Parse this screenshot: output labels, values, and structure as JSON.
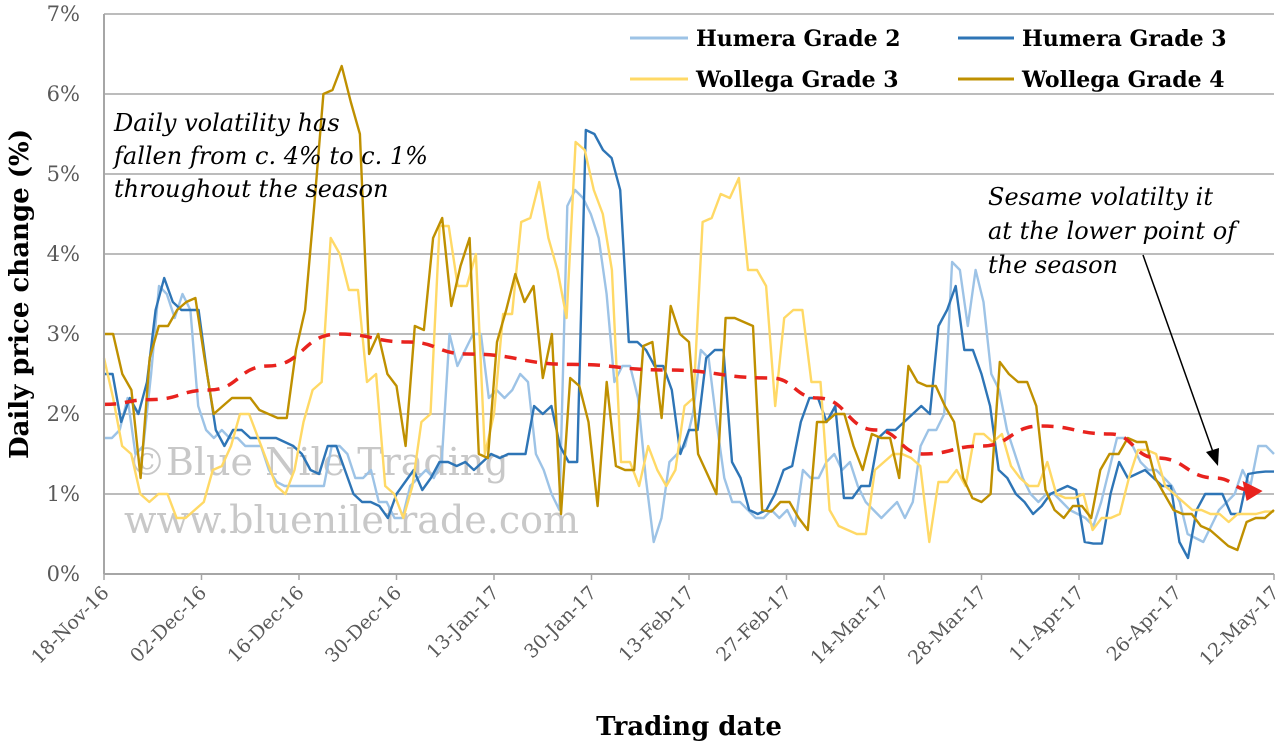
{
  "chart_data": {
    "type": "line",
    "xlabel": "Trading date",
    "ylabel": "Daily price change (%)",
    "ylim": [
      0,
      7
    ],
    "y_ticks": [
      0,
      1,
      2,
      3,
      4,
      5,
      6,
      7
    ],
    "y_tick_labels": [
      "0%",
      "1%",
      "2%",
      "3%",
      "4%",
      "5%",
      "6%",
      "7%"
    ],
    "x_tick_labels": [
      "18-Nov-16",
      "02-Dec-16",
      "16-Dec-16",
      "30-Dec-16",
      "13-Jan-17",
      "30-Jan-17",
      "13-Feb-17",
      "27-Feb-17",
      "14-Mar-17",
      "28-Mar-17",
      "11-Apr-17",
      "26-Apr-17",
      "12-May-17"
    ],
    "grid": "horizontal",
    "legend_position": "top-right",
    "colors": {
      "humera_grade_2": "#9dc3e6",
      "humera_grade_3": "#2e75b6",
      "wollega_grade_3": "#ffd966",
      "wollega_grade_4": "#bf9000",
      "trend": "#e8231e",
      "grid": "#a6a6a6"
    },
    "series": [
      {
        "name": "Humera Grade 2",
        "values": [
          1.7,
          1.7,
          1.8,
          2.2,
          1.5,
          1.6,
          2.5,
          3.6,
          3.5,
          3.2,
          3.5,
          3.3,
          2.1,
          1.8,
          1.7,
          1.8,
          1.7,
          1.7,
          1.6,
          1.6,
          1.6,
          1.3,
          1.15,
          1.1,
          1.1,
          1.1,
          1.1,
          1.1,
          1.1,
          1.6,
          1.6,
          1.5,
          1.2,
          1.2,
          1.3,
          0.9,
          0.9,
          0.7,
          0.7,
          1.1,
          1.2,
          1.3,
          1.2,
          1.4,
          3.0,
          2.6,
          2.8,
          3.0,
          3.0,
          2.2,
          2.3,
          2.2,
          2.3,
          2.5,
          2.4,
          1.5,
          1.3,
          1.0,
          0.8,
          4.6,
          4.8,
          4.7,
          4.5,
          4.2,
          3.5,
          2.4,
          2.6,
          2.6,
          2.2,
          1.2,
          0.4,
          0.7,
          1.4,
          1.5,
          1.6,
          2.0,
          2.8,
          2.7,
          1.9,
          1.2,
          0.9,
          0.9,
          0.8,
          0.7,
          0.7,
          0.8,
          0.7,
          0.8,
          0.6,
          1.3,
          1.2,
          1.2,
          1.4,
          1.5,
          1.3,
          1.4,
          1.1,
          0.9,
          0.8,
          0.7,
          0.8,
          0.9,
          0.7,
          0.9,
          1.6,
          1.8,
          1.8,
          2.0,
          3.9,
          3.8,
          3.1,
          3.8,
          3.4,
          2.5,
          2.3,
          1.8,
          1.5,
          1.2,
          1.0,
          0.9,
          1.0,
          1.0,
          0.9,
          0.8,
          0.75,
          0.7,
          0.6,
          0.9,
          1.3,
          1.7,
          1.7,
          1.6,
          1.4,
          1.3,
          1.3,
          1.2,
          1.1,
          0.9,
          0.5,
          0.45,
          0.4,
          0.6,
          0.8,
          0.9,
          1.0,
          1.3,
          1.1,
          1.6,
          1.6,
          1.5
        ]
      },
      {
        "name": "Humera Grade 3",
        "values": [
          2.5,
          2.5,
          1.9,
          2.2,
          2.0,
          2.4,
          3.3,
          3.7,
          3.4,
          3.3,
          3.3,
          3.3,
          2.5,
          1.8,
          1.6,
          1.8,
          1.8,
          1.7,
          1.7,
          1.7,
          1.7,
          1.65,
          1.6,
          1.5,
          1.3,
          1.25,
          1.6,
          1.6,
          1.3,
          1.0,
          0.9,
          0.9,
          0.85,
          0.7,
          1.0,
          1.15,
          1.3,
          1.05,
          1.2,
          1.4,
          1.4,
          1.35,
          1.4,
          1.3,
          1.4,
          1.5,
          1.45,
          1.5,
          1.5,
          1.5,
          2.1,
          2.0,
          2.1,
          1.6,
          1.4,
          1.4,
          5.55,
          5.5,
          5.3,
          5.2,
          4.8,
          2.9,
          2.9,
          2.8,
          2.6,
          2.6,
          2.3,
          1.5,
          1.8,
          1.8,
          2.7,
          2.8,
          2.8,
          1.4,
          1.2,
          0.8,
          0.75,
          0.8,
          1.0,
          1.3,
          1.35,
          1.9,
          2.2,
          2.2,
          1.9,
          2.1,
          0.95,
          0.95,
          1.1,
          1.1,
          1.7,
          1.8,
          1.8,
          1.9,
          2.0,
          2.1,
          2.0,
          3.1,
          3.3,
          3.6,
          2.8,
          2.8,
          2.5,
          2.1,
          1.3,
          1.2,
          1.0,
          0.9,
          0.75,
          0.85,
          1.0,
          1.05,
          1.1,
          1.05,
          0.4,
          0.38,
          0.38,
          1.0,
          1.4,
          1.2,
          1.25,
          1.3,
          1.2,
          1.1,
          1.1,
          0.4,
          0.2,
          0.8,
          1.0,
          1.0,
          1.0,
          0.75,
          0.75,
          1.25,
          1.27,
          1.28,
          1.28
        ]
      },
      {
        "name": "Wollega Grade 3",
        "values": [
          2.7,
          2.2,
          1.6,
          1.5,
          1.0,
          0.9,
          1.0,
          1.0,
          0.7,
          0.7,
          0.8,
          0.9,
          1.3,
          1.35,
          1.6,
          2.0,
          2.0,
          1.7,
          1.4,
          1.1,
          1.0,
          1.3,
          1.9,
          2.3,
          2.4,
          4.2,
          4.0,
          3.55,
          3.55,
          2.4,
          2.5,
          1.1,
          1.0,
          0.7,
          1.1,
          1.9,
          2.0,
          4.35,
          4.35,
          3.6,
          3.6,
          4.0,
          1.5,
          2.0,
          3.25,
          3.25,
          4.4,
          4.45,
          4.9,
          4.2,
          3.8,
          3.2,
          5.4,
          5.3,
          4.8,
          4.5,
          3.8,
          1.4,
          1.4,
          1.1,
          1.6,
          1.3,
          1.1,
          1.3,
          2.1,
          2.2,
          4.4,
          4.45,
          4.75,
          4.7,
          4.95,
          3.8,
          3.8,
          3.6,
          2.1,
          3.2,
          3.3,
          3.3,
          2.4,
          2.4,
          0.8,
          0.6,
          0.55,
          0.5,
          0.5,
          1.3,
          1.4,
          1.5,
          1.5,
          1.45,
          1.35,
          0.4,
          1.15,
          1.15,
          1.3,
          1.1,
          1.75,
          1.75,
          1.65,
          1.75,
          1.35,
          1.2,
          1.1,
          1.1,
          1.4,
          1.0,
          0.95,
          0.95,
          1.0,
          0.55,
          0.7,
          0.7,
          0.75,
          1.2,
          1.55,
          1.55,
          1.5,
          1.1,
          1.0,
          0.9,
          0.8,
          0.8,
          0.75,
          0.75,
          0.65,
          0.75,
          0.75,
          0.75,
          0.78,
          0.78
        ]
      },
      {
        "name": "Wollega Grade 4",
        "values": [
          3.0,
          3.0,
          2.5,
          2.3,
          1.2,
          2.7,
          3.1,
          3.1,
          3.3,
          3.4,
          3.45,
          2.7,
          2.0,
          2.1,
          2.2,
          2.2,
          2.2,
          2.05,
          2.0,
          1.95,
          1.95,
          2.8,
          3.3,
          4.6,
          6.0,
          6.05,
          6.35,
          5.9,
          5.5,
          2.75,
          3.0,
          2.5,
          2.35,
          1.6,
          3.1,
          3.05,
          4.2,
          4.45,
          3.35,
          3.85,
          4.2,
          1.5,
          1.45,
          2.9,
          3.3,
          3.75,
          3.4,
          3.6,
          2.45,
          3.0,
          0.75,
          2.45,
          2.35,
          1.9,
          0.85,
          2.4,
          1.35,
          1.3,
          1.3,
          2.85,
          2.9,
          1.95,
          3.35,
          3.0,
          2.9,
          1.5,
          1.25,
          1.0,
          3.2,
          3.2,
          3.15,
          3.1,
          0.8,
          0.78,
          0.9,
          0.9,
          0.7,
          0.55,
          1.9,
          1.9,
          2.0,
          2.0,
          1.6,
          1.3,
          1.75,
          1.7,
          1.7,
          1.2,
          2.6,
          2.4,
          2.35,
          2.35,
          2.1,
          1.9,
          1.2,
          0.95,
          0.9,
          1.0,
          2.65,
          2.5,
          2.4,
          2.4,
          2.1,
          1.05,
          0.8,
          0.7,
          0.85,
          0.85,
          0.7,
          1.3,
          1.5,
          1.5,
          1.7,
          1.65,
          1.65,
          1.2,
          1.0,
          0.8,
          0.75,
          0.75,
          0.6,
          0.55,
          0.45,
          0.35,
          0.3,
          0.65,
          0.7,
          0.7,
          0.8
        ]
      }
    ],
    "trend": {
      "style": "dashed",
      "x": [
        0.0,
        0.04,
        0.09,
        0.14,
        0.2,
        0.26,
        0.31,
        0.4,
        0.48,
        0.57,
        0.61,
        0.66,
        0.7,
        0.75,
        0.8,
        0.86,
        0.9,
        0.95,
        0.98
      ],
      "values": [
        2.12,
        2.18,
        2.3,
        2.6,
        3.0,
        2.9,
        2.75,
        2.62,
        2.55,
        2.45,
        2.2,
        1.8,
        1.5,
        1.6,
        1.85,
        1.75,
        1.45,
        1.2,
        1.05
      ]
    },
    "annotations": {
      "left_line_1": "Daily volatility has",
      "left_line_2": "fallen from c. 4% to c. 1%",
      "left_line_3": "throughout the season",
      "right_line_1": "Sesame volatilty it",
      "right_line_2": "at the lower point of",
      "right_line_3": "the season"
    },
    "watermark": {
      "line_1": "©Blue Nile Trading",
      "line_2": "www.bluenile​trade.com"
    }
  }
}
